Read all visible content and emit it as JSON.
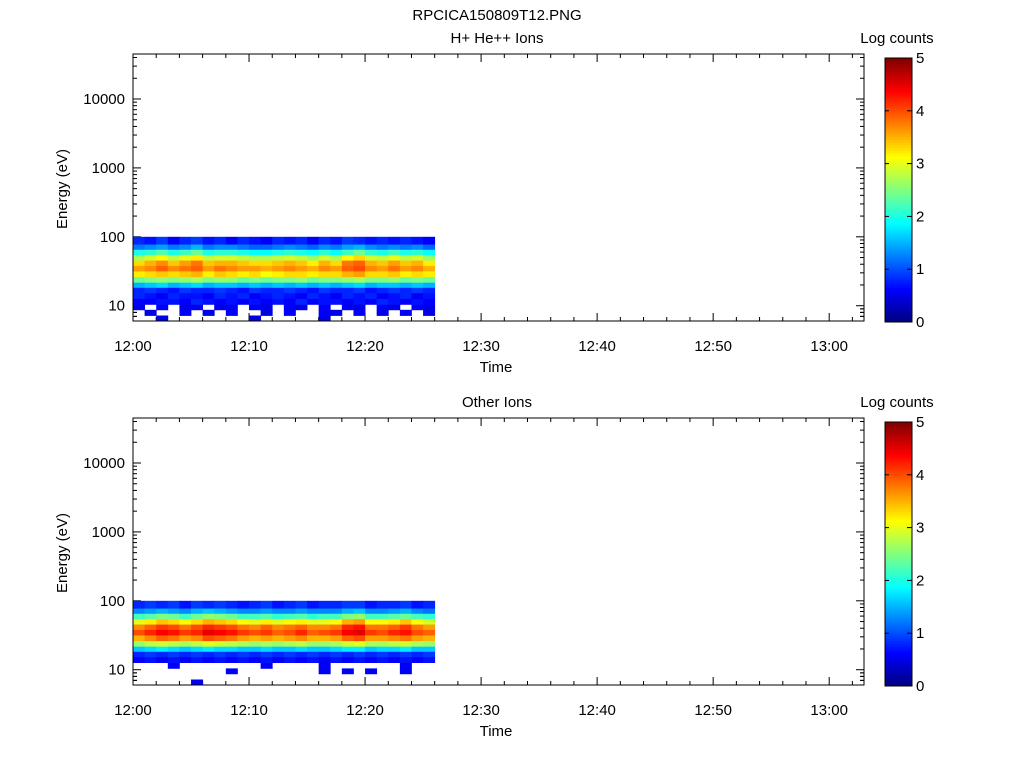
{
  "figure_title": "RPCICA150809T12.PNG",
  "chart_data": [
    {
      "type": "heatmap",
      "title": "H+ He++ Ions",
      "xlabel": "Time",
      "ylabel": "Energy (eV)",
      "y_scale": "log",
      "ylim_eV": [
        6,
        45000
      ],
      "xlim_minutes_after_1200": [
        0,
        63
      ],
      "x_ticks": [
        "12:00",
        "12:10",
        "12:20",
        "12:30",
        "12:40",
        "12:50",
        "13:00"
      ],
      "y_ticks": [
        "10",
        "100",
        "1000",
        "10000"
      ],
      "colorbar": {
        "label": "Log counts",
        "range": [
          0,
          5
        ],
        "ticks": [
          "0",
          "1",
          "2",
          "3",
          "4",
          "5"
        ]
      },
      "data_time_range": [
        "12:00",
        "12:26"
      ],
      "data_energy_range_eV": [
        6,
        100
      ],
      "energy_bins_eV": [
        6.5,
        8,
        9.5,
        11.5,
        14,
        17,
        20,
        24,
        29,
        35,
        42,
        50,
        60,
        72,
        85
      ],
      "columns": [
        [
          0,
          0,
          0.5,
          0.6,
          0.8,
          0.8,
          1.5,
          2.4,
          3.2,
          3.6,
          3.3,
          2.7,
          2,
          1.2,
          0.8
        ],
        [
          0,
          0.5,
          0,
          0.6,
          0.7,
          0.9,
          1.6,
          2.5,
          3.3,
          3.7,
          3.5,
          2.9,
          2.1,
          1.3,
          0.7
        ],
        [
          0.5,
          0,
          0.6,
          0.7,
          0.6,
          0.8,
          1.7,
          2.6,
          3.4,
          3.9,
          3.7,
          3.1,
          2.3,
          1.4,
          0.9
        ],
        [
          0,
          0,
          0,
          0.7,
          0.8,
          0.7,
          1.5,
          2.5,
          3.3,
          3.7,
          3.4,
          2.8,
          2,
          1.2,
          0.6
        ],
        [
          0,
          0.6,
          0.5,
          0.6,
          0.7,
          0.9,
          1.6,
          2.6,
          3.4,
          3.8,
          3.6,
          3,
          2.2,
          1.3,
          0.8
        ],
        [
          0,
          0,
          0.6,
          0.8,
          0.7,
          0.8,
          1.7,
          2.7,
          3.5,
          3.9,
          3.8,
          3.2,
          2.4,
          1.5,
          0.9
        ],
        [
          0,
          0.5,
          0,
          0.7,
          0.6,
          0.8,
          1.5,
          2.5,
          3.2,
          3.6,
          3.4,
          2.8,
          2,
          1.2,
          0.7
        ],
        [
          0,
          0,
          0.5,
          0.6,
          0.8,
          0.9,
          1.6,
          2.6,
          3.4,
          3.8,
          3.5,
          2.9,
          2.1,
          1.3,
          0.8
        ],
        [
          0,
          0.6,
          0.6,
          0.7,
          0.7,
          0.8,
          1.6,
          2.6,
          3.3,
          3.7,
          3.5,
          2.9,
          2.1,
          1.3,
          0.6
        ],
        [
          0,
          0,
          0,
          0.6,
          0.8,
          0.7,
          1.5,
          2.4,
          3.2,
          3.6,
          3.4,
          2.8,
          2,
          1.2,
          0.8
        ],
        [
          0.5,
          0,
          0.6,
          0.7,
          0.6,
          0.9,
          1.6,
          2.5,
          3.3,
          3.6,
          3.3,
          2.7,
          1.9,
          1.1,
          0.7
        ],
        [
          0,
          0.5,
          0.5,
          0.6,
          0.7,
          0.8,
          1.5,
          2.4,
          3.1,
          3.5,
          3.3,
          2.7,
          1.9,
          1.1,
          0.6
        ],
        [
          0,
          0,
          0,
          0.7,
          0.8,
          0.8,
          1.6,
          2.5,
          3.2,
          3.6,
          3.4,
          2.8,
          2,
          1.2,
          0.8
        ],
        [
          0,
          0.6,
          0.6,
          0.6,
          0.7,
          0.9,
          1.5,
          2.5,
          3.3,
          3.7,
          3.5,
          2.9,
          2.1,
          1.3,
          0.7
        ],
        [
          0,
          0,
          0.5,
          0.8,
          0.6,
          0.8,
          1.6,
          2.6,
          3.3,
          3.6,
          3.4,
          2.8,
          2,
          1.2,
          0.8
        ],
        [
          0,
          0,
          0,
          0.6,
          0.8,
          0.7,
          1.5,
          2.4,
          3.2,
          3.5,
          3.2,
          2.6,
          1.9,
          1.1,
          0.6
        ],
        [
          0.5,
          0.6,
          0.6,
          0.7,
          0.7,
          0.9,
          1.6,
          2.5,
          3.3,
          3.7,
          3.5,
          2.9,
          2.1,
          1.3,
          0.8
        ],
        [
          0,
          0.5,
          0,
          0.7,
          0.6,
          0.8,
          1.5,
          2.5,
          3.3,
          3.6,
          3.3,
          2.7,
          1.9,
          1.2,
          0.7
        ],
        [
          0,
          0,
          0.6,
          0.6,
          0.8,
          0.8,
          1.6,
          2.6,
          3.5,
          3.9,
          3.8,
          3.1,
          2.2,
          1.4,
          0.9
        ],
        [
          0,
          0.6,
          0.5,
          0.7,
          0.7,
          0.9,
          1.7,
          2.7,
          3.6,
          4.0,
          3.9,
          3.3,
          2.4,
          1.5,
          0.8
        ],
        [
          0,
          0,
          0,
          0.6,
          0.8,
          0.7,
          1.5,
          2.5,
          3.3,
          3.7,
          3.5,
          2.9,
          2.1,
          1.3,
          0.7
        ],
        [
          0,
          0.5,
          0.6,
          0.8,
          0.6,
          0.8,
          1.6,
          2.5,
          3.3,
          3.6,
          3.4,
          2.8,
          2,
          1.2,
          0.8
        ],
        [
          0,
          0,
          0.5,
          0.7,
          0.7,
          0.9,
          1.6,
          2.6,
          3.4,
          3.8,
          3.6,
          3,
          2.2,
          1.3,
          0.7
        ],
        [
          0,
          0.6,
          0,
          0.6,
          0.8,
          0.8,
          1.5,
          2.4,
          3.2,
          3.6,
          3.4,
          2.8,
          2,
          1.2,
          0.8
        ],
        [
          0,
          0,
          0.6,
          0.7,
          0.6,
          0.9,
          1.6,
          2.5,
          3.3,
          3.7,
          3.5,
          2.9,
          2.1,
          1.3,
          0.7
        ],
        [
          0,
          0.5,
          0.5,
          0.6,
          0.7,
          0.8,
          1.5,
          2.4,
          3.2,
          3.5,
          3.2,
          2.6,
          1.9,
          1.1,
          0.6
        ]
      ]
    },
    {
      "type": "heatmap",
      "title": "Other Ions",
      "xlabel": "Time",
      "ylabel": "Energy (eV)",
      "y_scale": "log",
      "ylim_eV": [
        6,
        45000
      ],
      "xlim_minutes_after_1200": [
        0,
        63
      ],
      "x_ticks": [
        "12:00",
        "12:10",
        "12:20",
        "12:30",
        "12:40",
        "12:50",
        "13:00"
      ],
      "y_ticks": [
        "10",
        "100",
        "1000",
        "10000"
      ],
      "colorbar": {
        "label": "Log counts",
        "range": [
          0,
          5
        ],
        "ticks": [
          "0",
          "1",
          "2",
          "3",
          "4",
          "5"
        ]
      },
      "data_time_range": [
        "12:00",
        "12:26"
      ],
      "data_energy_range_eV": [
        6,
        100
      ],
      "energy_bins_eV": [
        6.5,
        8,
        9.5,
        11.5,
        14,
        17,
        20,
        24,
        29,
        35,
        42,
        50,
        60,
        72,
        85
      ],
      "columns": [
        [
          0,
          0,
          0,
          0,
          0.6,
          0.8,
          1.6,
          2.6,
          3.5,
          4.0,
          3.7,
          3.0,
          2.2,
          1.3,
          0.8
        ],
        [
          0,
          0,
          0,
          0,
          0.7,
          0.9,
          1.7,
          2.8,
          3.7,
          4.2,
          3.9,
          3.2,
          2.3,
          1.4,
          0.9
        ],
        [
          0,
          0,
          0,
          0,
          0.6,
          0.8,
          1.8,
          2.9,
          3.9,
          4.4,
          4.1,
          3.4,
          2.5,
          1.5,
          0.8
        ],
        [
          0,
          0,
          0,
          0.6,
          0.7,
          0.9,
          1.7,
          2.8,
          3.8,
          4.3,
          4.0,
          3.3,
          2.4,
          1.4,
          0.9
        ],
        [
          0,
          0,
          0,
          0,
          0.6,
          0.8,
          1.6,
          2.7,
          3.6,
          4.1,
          3.8,
          3.1,
          2.2,
          1.3,
          0.7
        ],
        [
          0.6,
          0,
          0,
          0,
          0.7,
          0.9,
          1.7,
          2.8,
          3.7,
          4.2,
          4.0,
          3.3,
          2.4,
          1.5,
          0.9
        ],
        [
          0,
          0,
          0,
          0,
          0.6,
          0.8,
          1.8,
          3.0,
          4.0,
          4.5,
          4.2,
          3.5,
          2.6,
          1.6,
          0.8
        ],
        [
          0,
          0,
          0,
          0,
          0.7,
          0.9,
          1.7,
          2.9,
          3.9,
          4.4,
          4.1,
          3.4,
          2.5,
          1.5,
          0.9
        ],
        [
          0,
          0,
          0.6,
          0,
          0.6,
          0.8,
          1.7,
          2.8,
          3.8,
          4.3,
          4.0,
          3.3,
          2.4,
          1.4,
          0.8
        ],
        [
          0,
          0,
          0,
          0,
          0.7,
          0.9,
          1.6,
          2.7,
          3.6,
          4.1,
          3.8,
          3.1,
          2.2,
          1.3,
          0.7
        ],
        [
          0,
          0,
          0,
          0,
          0.6,
          0.8,
          1.6,
          2.6,
          3.5,
          4.0,
          3.7,
          3.0,
          2.2,
          1.3,
          0.8
        ],
        [
          0,
          0,
          0,
          0.6,
          0.7,
          0.9,
          1.7,
          2.7,
          3.6,
          4.1,
          3.9,
          3.2,
          2.3,
          1.4,
          0.9
        ],
        [
          0,
          0,
          0,
          0,
          0.6,
          0.8,
          1.6,
          2.6,
          3.5,
          3.9,
          3.7,
          3.0,
          2.1,
          1.3,
          0.7
        ],
        [
          0,
          0,
          0,
          0,
          0.7,
          0.9,
          1.6,
          2.7,
          3.6,
          4.0,
          3.8,
          3.1,
          2.2,
          1.3,
          0.8
        ],
        [
          0,
          0,
          0,
          0,
          0.6,
          0.8,
          1.7,
          2.8,
          3.7,
          4.2,
          3.9,
          3.2,
          2.3,
          1.4,
          0.9
        ],
        [
          0,
          0,
          0,
          0,
          0.7,
          0.9,
          1.6,
          2.6,
          3.5,
          3.9,
          3.7,
          3.0,
          2.1,
          1.3,
          0.7
        ],
        [
          0,
          0,
          0.6,
          0.6,
          0.6,
          0.8,
          1.6,
          2.6,
          3.5,
          4.0,
          3.7,
          3.0,
          2.2,
          1.3,
          0.8
        ],
        [
          0,
          0,
          0,
          0,
          0.7,
          0.9,
          1.7,
          2.7,
          3.6,
          4.1,
          3.8,
          3.1,
          2.2,
          1.3,
          0.8
        ],
        [
          0,
          0,
          0.6,
          0,
          0.6,
          0.8,
          1.8,
          2.9,
          3.9,
          4.4,
          4.2,
          3.5,
          2.5,
          1.5,
          0.9
        ],
        [
          0,
          0,
          0,
          0,
          0.7,
          0.9,
          1.8,
          3.0,
          4.0,
          4.5,
          4.3,
          3.6,
          2.6,
          1.6,
          0.9
        ],
        [
          0,
          0,
          0.6,
          0,
          0.6,
          0.8,
          1.6,
          2.7,
          3.6,
          4.1,
          3.8,
          3.1,
          2.2,
          1.3,
          0.7
        ],
        [
          0,
          0,
          0,
          0,
          0.7,
          0.9,
          1.7,
          2.7,
          3.6,
          4.0,
          3.8,
          3.1,
          2.2,
          1.3,
          0.8
        ],
        [
          0,
          0,
          0,
          0,
          0.6,
          0.8,
          1.7,
          2.8,
          3.7,
          4.2,
          3.9,
          3.2,
          2.3,
          1.4,
          0.8
        ],
        [
          0,
          0,
          0.6,
          0.6,
          0.7,
          0.9,
          1.8,
          2.9,
          3.8,
          4.3,
          4.1,
          3.4,
          2.4,
          1.5,
          0.9
        ],
        [
          0,
          0,
          0,
          0,
          0.6,
          0.8,
          1.6,
          2.7,
          3.6,
          4.0,
          3.8,
          3.1,
          2.2,
          1.3,
          0.7
        ],
        [
          0,
          0,
          0,
          0,
          0.7,
          0.9,
          1.6,
          2.6,
          3.5,
          3.9,
          3.6,
          2.9,
          2.1,
          1.2,
          0.8
        ]
      ]
    }
  ]
}
